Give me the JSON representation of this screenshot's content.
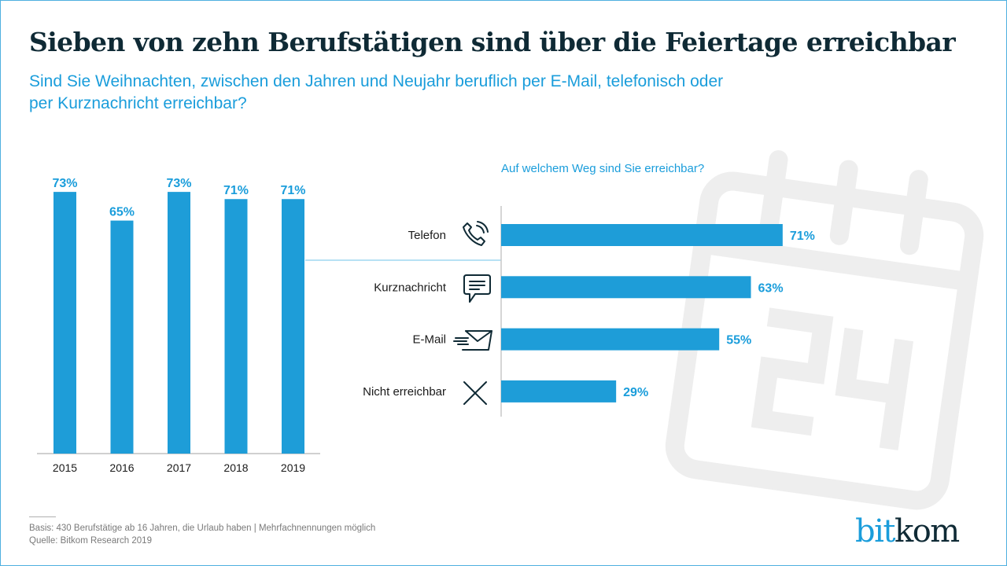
{
  "header": {
    "title": "Sieben von zehn Berufstätigen sind über die Feiertage erreichbar",
    "subtitle_line1": "Sind Sie Weihnachten, zwischen den Jahren und Neujahr beruflich per E-Mail, telefonisch oder",
    "subtitle_line2": "per Kurznachricht erreichbar?"
  },
  "colors": {
    "bar": "#1e9dd8",
    "label": "#1a9ddb",
    "title": "#0f2a35",
    "axis": "#b5b5b5",
    "watermark": "#eeeeee",
    "connector": "#6fc3ea"
  },
  "chart_data": [
    {
      "type": "bar",
      "title": "",
      "categories": [
        "2015",
        "2016",
        "2017",
        "2018",
        "2019"
      ],
      "values": [
        73,
        65,
        73,
        71,
        71
      ],
      "value_labels": [
        "73%",
        "65%",
        "73%",
        "71%",
        "71%"
      ],
      "xlabel": "",
      "ylabel": "",
      "ylim": [
        0,
        100
      ],
      "grid": false
    },
    {
      "type": "bar",
      "orientation": "horizontal",
      "title": "Auf welchem Weg sind Sie erreichbar?",
      "categories": [
        "Telefon",
        "Kurznachricht",
        "E-Mail",
        "Nicht erreichbar"
      ],
      "icons": [
        "phone-icon",
        "message-icon",
        "email-icon",
        "cross-icon"
      ],
      "values": [
        71,
        63,
        55,
        29
      ],
      "value_labels": [
        "71%",
        "63%",
        "55%",
        "29%"
      ],
      "xlim": [
        0,
        100
      ],
      "grid": false
    }
  ],
  "watermark": {
    "icon": "calendar-icon",
    "text": "24"
  },
  "footer": {
    "basis": "Basis: 430 Berufstätige ab 16 Jahren, die Urlaub haben | Mehrfachnennungen möglich",
    "source": "Quelle: Bitkom Research 2019"
  },
  "logo": {
    "part1": "bit",
    "part2": "kom"
  }
}
